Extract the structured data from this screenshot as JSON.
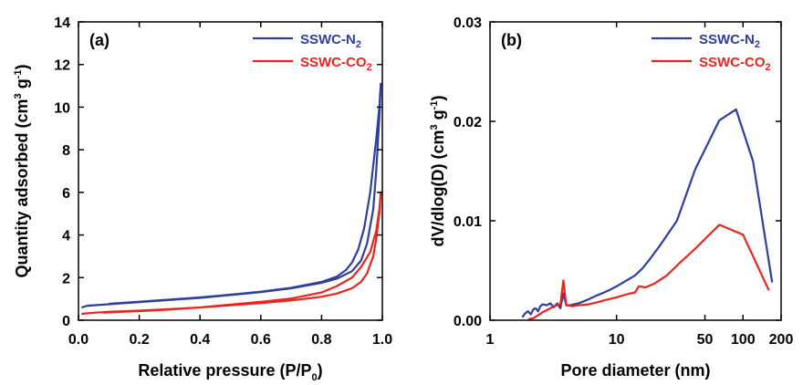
{
  "chart_data": [
    {
      "type": "line",
      "panel_label": "(a)",
      "xlabel_main": "Relative pressure (P/P",
      "xlabel_sub": "0",
      "xlabel_end": ")",
      "ylabel_main": "Quantity adsorbed (cm",
      "ylabel_sup1": "3",
      "ylabel_mid": " g",
      "ylabel_sup2": "-1",
      "ylabel_end": ")",
      "xlim": [
        0.0,
        1.0
      ],
      "ylim": [
        0,
        14
      ],
      "xticks": [
        "0.0",
        "0.2",
        "0.4",
        "0.6",
        "0.8",
        "1.0"
      ],
      "yticks": [
        "0",
        "2",
        "4",
        "6",
        "8",
        "10",
        "12",
        "14"
      ],
      "legend_position": "top-right",
      "series": [
        {
          "name": "SSWC-N2",
          "legend_main": "SSWC-N",
          "legend_sub": "2",
          "color": "#2e3f9e",
          "x": [
            0.01,
            0.03,
            0.1,
            0.2,
            0.3,
            0.4,
            0.5,
            0.6,
            0.7,
            0.8,
            0.85,
            0.9,
            0.93,
            0.95,
            0.97,
            0.98,
            0.99,
            0.995,
            0.99,
            0.98,
            0.96,
            0.94,
            0.92,
            0.9,
            0.88,
            0.85,
            0.8,
            0.7,
            0.6,
            0.5,
            0.4,
            0.3,
            0.2,
            0.1
          ],
          "y": [
            0.6,
            0.68,
            0.75,
            0.85,
            0.95,
            1.05,
            1.18,
            1.32,
            1.5,
            1.75,
            1.95,
            2.3,
            2.8,
            3.6,
            5.2,
            7.0,
            9.5,
            11.1,
            10.0,
            8.5,
            6.0,
            4.3,
            3.3,
            2.7,
            2.35,
            2.05,
            1.8,
            1.52,
            1.34,
            1.2,
            1.07,
            0.97,
            0.87,
            0.77
          ]
        },
        {
          "name": "SSWC-CO2",
          "legend_main": "SSWC-CO",
          "legend_sub": "2",
          "color": "#e8251f",
          "x": [
            0.01,
            0.05,
            0.1,
            0.2,
            0.3,
            0.4,
            0.5,
            0.6,
            0.7,
            0.8,
            0.85,
            0.9,
            0.93,
            0.95,
            0.97,
            0.98,
            0.99,
            0.995,
            0.99,
            0.98,
            0.96,
            0.93,
            0.9,
            0.85,
            0.8,
            0.7,
            0.6,
            0.5,
            0.4,
            0.3,
            0.2,
            0.1,
            0.08
          ],
          "y": [
            0.3,
            0.35,
            0.4,
            0.45,
            0.52,
            0.6,
            0.7,
            0.8,
            0.93,
            1.1,
            1.25,
            1.5,
            1.8,
            2.2,
            3.0,
            3.8,
            5.0,
            6.0,
            5.2,
            4.2,
            3.2,
            2.5,
            2.0,
            1.6,
            1.3,
            1.02,
            0.86,
            0.73,
            0.6,
            0.5,
            0.43,
            0.37,
            0.35
          ]
        }
      ]
    },
    {
      "type": "line",
      "panel_label": "(b)",
      "xlabel_main": "Pore diameter (nm)",
      "ylabel_main": "dV/dlog(D) (cm",
      "ylabel_sup1": "3",
      "ylabel_mid": " g",
      "ylabel_sup2": "-1",
      "ylabel_end": ")",
      "xscale": "log",
      "xlim": [
        1,
        200
      ],
      "ylim": [
        0,
        0.03
      ],
      "xticks": [
        {
          "value": 1,
          "label": "1"
        },
        {
          "value": 10,
          "label": "10"
        },
        {
          "value": 50,
          "label": "50"
        },
        {
          "value": 100,
          "label": "100"
        },
        {
          "value": 200,
          "label": "200"
        }
      ],
      "yticks": [
        {
          "value": 0,
          "label": "0.00"
        },
        {
          "value": 0.01,
          "label": "0.01"
        },
        {
          "value": 0.02,
          "label": "0.02"
        },
        {
          "value": 0.03,
          "label": "0.03"
        }
      ],
      "legend_position": "top-right",
      "series": [
        {
          "name": "SSWC-N2",
          "legend_main": "SSWC-N",
          "legend_sub": "2",
          "color": "#2e3f9e",
          "x": [
            1.8,
            1.9,
            2.0,
            2.1,
            2.2,
            2.3,
            2.4,
            2.5,
            2.6,
            2.8,
            3.0,
            3.2,
            3.4,
            3.6,
            3.8,
            4.0,
            4.3,
            4.6,
            5.0,
            5.5,
            6.0,
            7.0,
            8.0,
            9.0,
            10,
            12,
            14,
            16,
            18,
            22,
            30,
            42,
            65,
            88,
            120,
            170
          ],
          "y": [
            0.0003,
            0.0007,
            0.0009,
            0.0006,
            0.0011,
            0.0012,
            0.0009,
            0.0014,
            0.0016,
            0.0015,
            0.0017,
            0.0013,
            0.0017,
            0.0012,
            0.0027,
            0.0015,
            0.0015,
            0.0016,
            0.0017,
            0.0019,
            0.0021,
            0.0025,
            0.0028,
            0.0031,
            0.0034,
            0.004,
            0.0045,
            0.0052,
            0.006,
            0.0075,
            0.01,
            0.0152,
            0.0201,
            0.0212,
            0.016,
            0.0038
          ]
        },
        {
          "name": "SSWC-CO2",
          "legend_main": "SSWC-CO",
          "legend_sub": "2",
          "color": "#e8251f",
          "x": [
            2.0,
            2.2,
            2.4,
            2.6,
            2.8,
            3.0,
            3.2,
            3.4,
            3.6,
            3.8,
            4.0,
            4.5,
            5.0,
            6.0,
            7.0,
            8.0,
            10,
            12,
            14,
            15,
            17,
            20,
            25,
            30,
            42,
            65,
            100,
            160
          ],
          "y": [
            0.0001,
            0.0002,
            0.0005,
            0.0008,
            0.001,
            0.0012,
            0.0014,
            0.0015,
            0.0016,
            0.004,
            0.0015,
            0.0014,
            0.0015,
            0.0016,
            0.0018,
            0.002,
            0.0023,
            0.0026,
            0.0028,
            0.0034,
            0.0033,
            0.0037,
            0.0045,
            0.0055,
            0.0072,
            0.0096,
            0.0086,
            0.003
          ]
        }
      ]
    }
  ]
}
